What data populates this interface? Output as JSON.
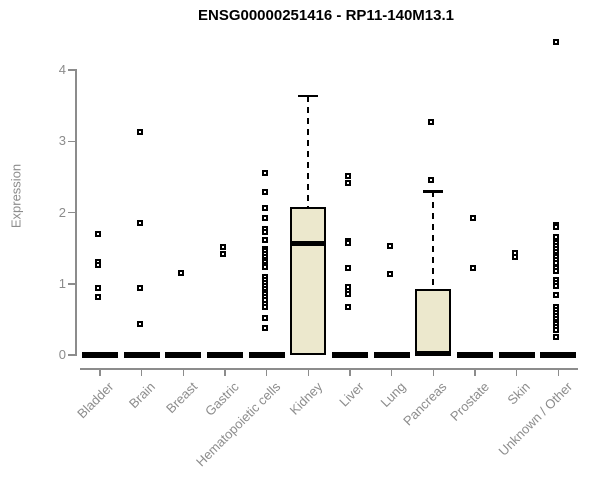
{
  "title": "ENSG00000251416 - RP11-140M13.1",
  "chart_data": {
    "type": "box",
    "title": "ENSG00000251416 - RP11-140M13.1",
    "xlabel": "",
    "ylabel": "Expression",
    "ylim": [
      0,
      4.45
    ],
    "yticks": [
      0,
      1,
      2,
      3,
      4
    ],
    "grid": false,
    "legend": "none",
    "box_fill_color": "#ece8cd",
    "box_border_color": "#000000",
    "axis_color": "#8c8c8c",
    "point_color": "#000000",
    "categories": [
      "Bladder",
      "Brain",
      "Breast",
      "Gastric",
      "Hematopoietic cells",
      "Kidney",
      "Liver",
      "Lung",
      "Pancreas",
      "Prostate",
      "Skin",
      "Unknown / Other"
    ],
    "series": [
      {
        "name": "Bladder",
        "zero_bar": true,
        "box": null,
        "points": [
          1.7,
          1.31,
          1.27,
          0.94,
          0.81
        ]
      },
      {
        "name": "Brain",
        "zero_bar": true,
        "box": null,
        "points": [
          3.13,
          1.85,
          0.94,
          0.43
        ]
      },
      {
        "name": "Breast",
        "zero_bar": true,
        "box": null,
        "points": [
          1.15
        ]
      },
      {
        "name": "Gastric",
        "zero_bar": true,
        "box": null,
        "points": [
          1.52,
          1.42
        ]
      },
      {
        "name": "Hematopoietic cells",
        "zero_bar": true,
        "box": null,
        "points": [
          2.55,
          2.29,
          2.06,
          1.92,
          1.77,
          1.72,
          1.61,
          1.49,
          1.46,
          1.42,
          1.38,
          1.34,
          1.3,
          1.27,
          1.24,
          1.09,
          1.05,
          1.01,
          0.97,
          0.93,
          0.89,
          0.85,
          0.81,
          0.77,
          0.72,
          0.67,
          0.52,
          0.38
        ]
      },
      {
        "name": "Kidney",
        "zero_bar": false,
        "box": {
          "q1": 0.0,
          "median": 1.57,
          "q3": 2.08,
          "whisker_high": 3.64
        },
        "points": []
      },
      {
        "name": "Liver",
        "zero_bar": true,
        "box": null,
        "points": [
          2.51,
          2.42,
          1.6,
          1.57,
          1.22,
          0.95,
          0.9,
          0.85,
          0.67
        ]
      },
      {
        "name": "Lung",
        "zero_bar": true,
        "box": null,
        "points": [
          1.53,
          1.14
        ]
      },
      {
        "name": "Pancreas",
        "zero_bar": false,
        "box": {
          "q1": 0.0,
          "median": 0.02,
          "q3": 0.92,
          "whisker_high": 2.3
        },
        "points": [
          3.27,
          2.46
        ]
      },
      {
        "name": "Prostate",
        "zero_bar": true,
        "box": null,
        "points": [
          1.92,
          1.22
        ]
      },
      {
        "name": "Skin",
        "zero_bar": true,
        "box": null,
        "points": [
          1.43,
          1.38
        ]
      },
      {
        "name": "Unknown / Other",
        "zero_bar": true,
        "box": null,
        "points": [
          4.4,
          1.83,
          1.79,
          1.66,
          1.57,
          1.53,
          1.49,
          1.45,
          1.41,
          1.37,
          1.33,
          1.29,
          1.22,
          1.18,
          1.05,
          1.01,
          0.97,
          0.84,
          0.67,
          0.63,
          0.59,
          0.55,
          0.51,
          0.47,
          0.43,
          0.39,
          0.35,
          0.25
        ]
      }
    ]
  }
}
